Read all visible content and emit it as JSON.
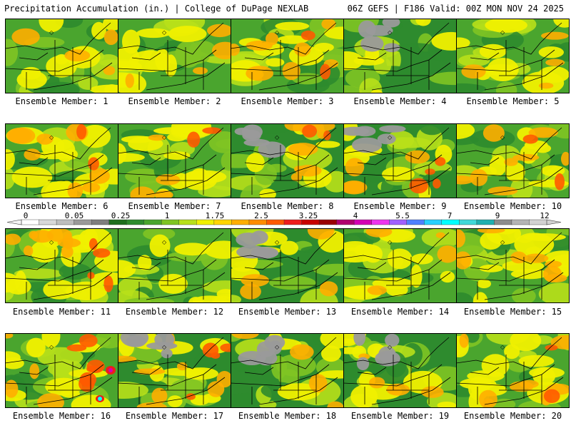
{
  "header": {
    "title_left": "Precipitation Accumulation (in.) | College of DuPage NEXLAB",
    "title_right": "06Z GEFS | F186 Valid: 00Z MON NOV 24 2025"
  },
  "legend": {
    "labels": [
      "0",
      "0.05",
      "0.25",
      "1",
      "1.75",
      "2.5",
      "3.25",
      "4",
      "5.5",
      "7",
      "9",
      "12"
    ],
    "colors": [
      "#ffffff",
      "#d8d8d8",
      "#bebebe",
      "#9a9a9a",
      "#7e7e7e",
      "#1e6e1e",
      "#2e8b2e",
      "#4aa52e",
      "#7fc423",
      "#b8e01a",
      "#f0f000",
      "#ffd500",
      "#ffae00",
      "#ff8c00",
      "#ff5a00",
      "#ee1c1c",
      "#c80000",
      "#9a0000",
      "#b0006e",
      "#d400b4",
      "#ee34ee",
      "#a060ff",
      "#5080ff",
      "#28d0ff",
      "#00ffff",
      "#40d8d8",
      "#20b0b0",
      "#8c8c8c",
      "#b4b4b4",
      "#d2d2d2"
    ]
  },
  "members": [
    {
      "label": "Ensemble Member: 1"
    },
    {
      "label": "Ensemble Member: 2"
    },
    {
      "label": "Ensemble Member: 3"
    },
    {
      "label": "Ensemble Member: 4"
    },
    {
      "label": "Ensemble Member: 5"
    },
    {
      "label": "Ensemble Member: 6"
    },
    {
      "label": "Ensemble Member: 7"
    },
    {
      "label": "Ensemble Member: 8"
    },
    {
      "label": "Ensemble Member: 9"
    },
    {
      "label": "Ensemble Member: 10"
    },
    {
      "label": "Ensemble Member: 11"
    },
    {
      "label": "Ensemble Member: 12"
    },
    {
      "label": "Ensemble Member: 13"
    },
    {
      "label": "Ensemble Member: 14"
    },
    {
      "label": "Ensemble Member: 15"
    },
    {
      "label": "Ensemble Member: 16"
    },
    {
      "label": "Ensemble Member: 17"
    },
    {
      "label": "Ensemble Member: 18"
    },
    {
      "label": "Ensemble Member: 19"
    },
    {
      "label": "Ensemble Member: 20"
    }
  ]
}
